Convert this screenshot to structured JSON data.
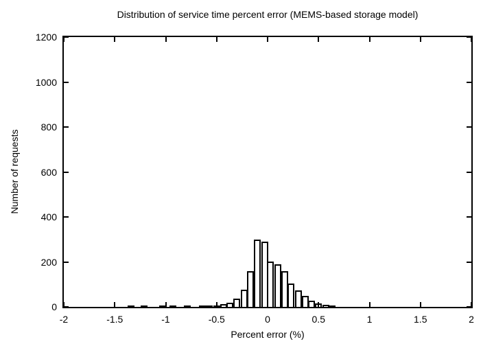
{
  "window": {
    "background": "#ffffff",
    "foreground": "#000000"
  },
  "chart_data": {
    "type": "bar",
    "title": "Distribution of service time percent error (MEMS-based storage model)",
    "xlabel": "Percent error (%)",
    "ylabel": "Number of requests",
    "xlim": [
      -2,
      2
    ],
    "ylim": [
      0,
      1200
    ],
    "x_ticks": [
      -2,
      -1.5,
      -1,
      -0.5,
      0,
      0.5,
      1,
      1.5,
      2
    ],
    "x_tick_labels": [
      "-2",
      "-1.5",
      "-1",
      "-0.5",
      "0",
      "0.5",
      "1",
      "1.5",
      "2"
    ],
    "y_ticks": [
      0,
      200,
      400,
      600,
      800,
      1000,
      1200
    ],
    "y_tick_labels": [
      "0",
      "200",
      "400",
      "600",
      "800",
      "1000",
      "1200"
    ],
    "grid": false,
    "legend": null,
    "bar_fill": "#ffffff",
    "bar_border": "#000000",
    "bin_width": 0.067,
    "bins": [
      {
        "center": -1.34,
        "count": 4
      },
      {
        "center": -1.21,
        "count": 5
      },
      {
        "center": -1.03,
        "count": 6
      },
      {
        "center": -0.93,
        "count": 5
      },
      {
        "center": -0.79,
        "count": 3
      },
      {
        "center": -0.64,
        "count": 3
      },
      {
        "center": -0.57,
        "count": 4
      },
      {
        "center": -0.5,
        "count": 6
      },
      {
        "center": -0.43,
        "count": 11
      },
      {
        "center": -0.37,
        "count": 18
      },
      {
        "center": -0.3,
        "count": 36
      },
      {
        "center": -0.23,
        "count": 75
      },
      {
        "center": -0.17,
        "count": 158
      },
      {
        "center": -0.1,
        "count": 298
      },
      {
        "center": -0.03,
        "count": 291
      },
      {
        "center": 0.03,
        "count": 202
      },
      {
        "center": 0.1,
        "count": 190
      },
      {
        "center": 0.17,
        "count": 158
      },
      {
        "center": 0.23,
        "count": 103
      },
      {
        "center": 0.3,
        "count": 72
      },
      {
        "center": 0.37,
        "count": 48
      },
      {
        "center": 0.43,
        "count": 29
      },
      {
        "center": 0.5,
        "count": 14
      },
      {
        "center": 0.57,
        "count": 9
      },
      {
        "center": 0.63,
        "count": 4
      }
    ]
  }
}
